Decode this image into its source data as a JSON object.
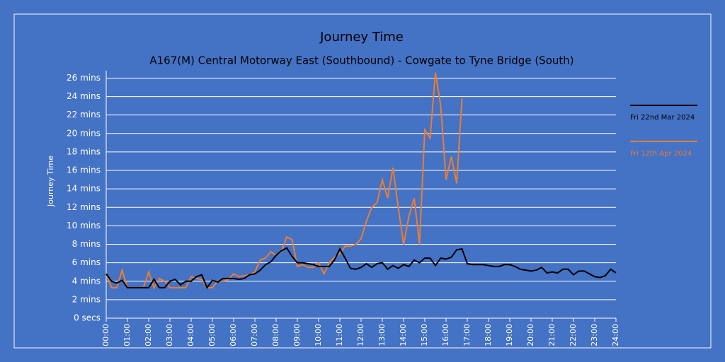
{
  "chart_data": {
    "type": "line",
    "title": "Journey Time",
    "subtitle": "A167(M) Central Motorway East (Southbound) - Cowgate to Tyne Bridge (South)",
    "y_label": "Journey Time",
    "x": [
      0,
      0.25,
      0.5,
      0.75,
      1,
      1.25,
      1.5,
      1.75,
      2,
      2.25,
      2.5,
      2.75,
      3,
      3.25,
      3.5,
      3.75,
      4,
      4.25,
      4.5,
      4.75,
      5,
      5.25,
      5.5,
      5.75,
      6,
      6.25,
      6.5,
      6.75,
      7,
      7.25,
      7.5,
      7.75,
      8,
      8.25,
      8.5,
      8.75,
      9,
      9.25,
      9.5,
      9.75,
      10,
      10.25,
      10.5,
      10.75,
      11,
      11.25,
      11.5,
      11.75,
      12,
      12.25,
      12.5,
      12.75,
      13,
      13.25,
      13.5,
      13.75,
      14,
      14.25,
      14.5,
      14.75,
      15,
      15.25,
      15.5,
      15.75,
      16,
      16.25,
      16.5,
      16.75,
      17,
      17.25,
      17.5,
      17.75,
      18,
      18.25,
      18.5,
      18.75,
      19,
      19.25,
      19.5,
      19.75,
      20,
      20.25,
      20.5,
      20.75,
      21,
      21.25,
      21.5,
      21.75,
      22,
      22.25,
      22.5,
      22.75,
      23,
      23.25,
      23.5,
      23.75,
      24
    ],
    "series": [
      {
        "name": "Fri 22nd Mar 2024",
        "color": "#000000",
        "values": [
          4.8,
          4.0,
          3.8,
          4.1,
          3.3,
          3.3,
          3.3,
          3.3,
          3.3,
          4.2,
          3.3,
          3.3,
          4.0,
          4.2,
          3.6,
          4.0,
          4.0,
          4.5,
          4.7,
          3.3,
          4.1,
          3.9,
          4.3,
          4.3,
          4.3,
          4.2,
          4.3,
          4.7,
          4.8,
          5.2,
          5.8,
          6.1,
          6.8,
          7.3,
          7.6,
          6.7,
          6.0,
          6.0,
          5.9,
          5.8,
          5.6,
          5.6,
          5.6,
          6.3,
          7.5,
          6.5,
          5.4,
          5.3,
          5.5,
          5.9,
          5.5,
          5.9,
          6.0,
          5.3,
          5.7,
          5.4,
          5.8,
          5.6,
          6.3,
          6.0,
          6.5,
          6.5,
          5.7,
          6.5,
          6.4,
          6.6,
          7.4,
          7.5,
          5.9,
          5.8,
          5.8,
          5.8,
          5.7,
          5.6,
          5.6,
          5.8,
          5.8,
          5.6,
          5.3,
          5.2,
          5.1,
          5.2,
          5.5,
          4.9,
          5.0,
          4.9,
          5.3,
          5.3,
          4.7,
          5.1,
          5.1,
          4.8,
          4.5,
          4.4,
          4.6,
          5.3,
          4.9
        ]
      },
      {
        "name": "Fri 12th Apr 2024",
        "color": "#ed7d31",
        "values": [
          4.8,
          3.3,
          3.3,
          5.2,
          3.3,
          3.3,
          3.3,
          3.3,
          5.0,
          3.3,
          4.3,
          4.0,
          3.3,
          3.3,
          3.3,
          3.3,
          4.5,
          4.3,
          4.2,
          3.3,
          3.3,
          4.0,
          4.0,
          4.2,
          4.8,
          4.5,
          4.6,
          4.7,
          5.0,
          6.3,
          6.5,
          7.2,
          6.8,
          7.2,
          8.8,
          8.5,
          5.6,
          5.8,
          5.5,
          5.5,
          6.0,
          4.8,
          6.0,
          6.6,
          7.0,
          7.8,
          7.8,
          8.0,
          8.6,
          10.5,
          12.0,
          12.5,
          15.0,
          13.0,
          16.3,
          12.0,
          8.0,
          11.0,
          13.0,
          8.0,
          20.4,
          19.5,
          26.6,
          23.0,
          15.0,
          17.5,
          14.6,
          23.8,
          null,
          null,
          null,
          null,
          null,
          null,
          null,
          null,
          null,
          null,
          null,
          null,
          null,
          null,
          null,
          null,
          null,
          null,
          null,
          null,
          null,
          null,
          null,
          null,
          null,
          null,
          null,
          null,
          null
        ]
      }
    ],
    "xlim": [
      0,
      24
    ],
    "xticks": [
      {
        "value": 0,
        "label": "00:00"
      },
      {
        "value": 1,
        "label": "01:00"
      },
      {
        "value": 2,
        "label": "02:00"
      },
      {
        "value": 3,
        "label": "03:00"
      },
      {
        "value": 4,
        "label": "04:00"
      },
      {
        "value": 5,
        "label": "05:00"
      },
      {
        "value": 6,
        "label": "06:00"
      },
      {
        "value": 7,
        "label": "07:00"
      },
      {
        "value": 8,
        "label": "08:00"
      },
      {
        "value": 9,
        "label": "09:00"
      },
      {
        "value": 10,
        "label": "10:00"
      },
      {
        "value": 11,
        "label": "11:00"
      },
      {
        "value": 12,
        "label": "12:00"
      },
      {
        "value": 13,
        "label": "13:00"
      },
      {
        "value": 14,
        "label": "14:00"
      },
      {
        "value": 15,
        "label": "15:00"
      },
      {
        "value": 16,
        "label": "16:00"
      },
      {
        "value": 17,
        "label": "17:00"
      },
      {
        "value": 18,
        "label": "18:00"
      },
      {
        "value": 19,
        "label": "19:00"
      },
      {
        "value": 20,
        "label": "20:00"
      },
      {
        "value": 21,
        "label": "21:00"
      },
      {
        "value": 22,
        "label": "22:00"
      },
      {
        "value": 23,
        "label": "23:00"
      },
      {
        "value": 24,
        "label": "24:00"
      }
    ],
    "ylim": [
      0,
      26.8
    ],
    "yticks": [
      {
        "value": 0,
        "label": "0 secs"
      },
      {
        "value": 2,
        "label": "2 mins"
      },
      {
        "value": 4,
        "label": "4 mins"
      },
      {
        "value": 6,
        "label": "6 mins"
      },
      {
        "value": 8,
        "label": "8 mins"
      },
      {
        "value": 10,
        "label": "10 mins"
      },
      {
        "value": 12,
        "label": "12 mins"
      },
      {
        "value": 14,
        "label": "14 mins"
      },
      {
        "value": 16,
        "label": "16 mins"
      },
      {
        "value": 18,
        "label": "18 mins"
      },
      {
        "value": 20,
        "label": "20 mins"
      },
      {
        "value": 22,
        "label": "22 mins"
      },
      {
        "value": 24,
        "label": "24 mins"
      },
      {
        "value": 26,
        "label": "26 mins"
      }
    ],
    "grid": true
  }
}
